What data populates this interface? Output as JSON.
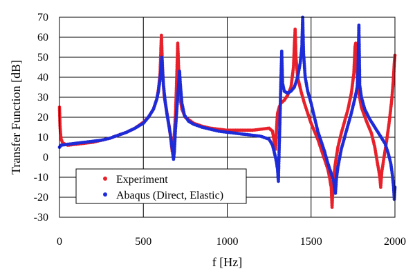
{
  "chart_data": {
    "type": "scatter",
    "title": "",
    "xlabel": "f [Hz]",
    "ylabel": "Transfer Function [dB]",
    "xlim": [
      0,
      2000
    ],
    "ylim": [
      -30,
      70
    ],
    "xticks": [
      0,
      500,
      1000,
      1500,
      2000
    ],
    "yticks": [
      -30,
      -20,
      -10,
      0,
      10,
      20,
      30,
      40,
      50,
      60,
      70
    ],
    "grid": true,
    "legend_position": "bottom-left",
    "series": [
      {
        "name": "Experiment",
        "color": "#e8202a",
        "marker": "circle",
        "points": [
          [
            0,
            25
          ],
          [
            3,
            16
          ],
          [
            6,
            12
          ],
          [
            10,
            9
          ],
          [
            20,
            7
          ],
          [
            50,
            6
          ],
          [
            100,
            6.5
          ],
          [
            150,
            7
          ],
          [
            200,
            7.5
          ],
          [
            250,
            8.5
          ],
          [
            300,
            9.5
          ],
          [
            350,
            11
          ],
          [
            400,
            12.5
          ],
          [
            450,
            14.5
          ],
          [
            500,
            17.5
          ],
          [
            530,
            20
          ],
          [
            560,
            24
          ],
          [
            580,
            29
          ],
          [
            590,
            34
          ],
          [
            600,
            42
          ],
          [
            605,
            55
          ],
          [
            608,
            61
          ],
          [
            612,
            50
          ],
          [
            618,
            38
          ],
          [
            625,
            30
          ],
          [
            635,
            25
          ],
          [
            645,
            20
          ],
          [
            655,
            15
          ],
          [
            665,
            8
          ],
          [
            672,
            3
          ],
          [
            678,
            5
          ],
          [
            685,
            12
          ],
          [
            692,
            22
          ],
          [
            700,
            42
          ],
          [
            705,
            57
          ],
          [
            710,
            45
          ],
          [
            718,
            30
          ],
          [
            730,
            24
          ],
          [
            750,
            20
          ],
          [
            800,
            17
          ],
          [
            850,
            15.5
          ],
          [
            900,
            14.5
          ],
          [
            950,
            14
          ],
          [
            1000,
            13.5
          ],
          [
            1050,
            13.5
          ],
          [
            1100,
            13.5
          ],
          [
            1150,
            13.5
          ],
          [
            1200,
            14
          ],
          [
            1250,
            14.5
          ],
          [
            1270,
            13
          ],
          [
            1280,
            8
          ],
          [
            1288,
            4
          ],
          [
            1292,
            10
          ],
          [
            1296,
            17
          ],
          [
            1300,
            22
          ],
          [
            1310,
            25
          ],
          [
            1320,
            27
          ],
          [
            1340,
            28.5
          ],
          [
            1360,
            31
          ],
          [
            1380,
            35
          ],
          [
            1395,
            45
          ],
          [
            1400,
            55
          ],
          [
            1405,
            64
          ],
          [
            1410,
            50
          ],
          [
            1420,
            40
          ],
          [
            1440,
            33
          ],
          [
            1460,
            27
          ],
          [
            1480,
            22
          ],
          [
            1500,
            17
          ],
          [
            1520,
            13
          ],
          [
            1540,
            9
          ],
          [
            1560,
            4
          ],
          [
            1580,
            -1
          ],
          [
            1600,
            -6
          ],
          [
            1610,
            -10
          ],
          [
            1620,
            -15
          ],
          [
            1625,
            -25
          ],
          [
            1632,
            -12
          ],
          [
            1645,
            -3
          ],
          [
            1660,
            5
          ],
          [
            1680,
            12
          ],
          [
            1700,
            18
          ],
          [
            1720,
            24
          ],
          [
            1740,
            32
          ],
          [
            1755,
            42
          ],
          [
            1762,
            55
          ],
          [
            1766,
            57
          ],
          [
            1772,
            45
          ],
          [
            1785,
            32
          ],
          [
            1800,
            25
          ],
          [
            1830,
            18
          ],
          [
            1860,
            12
          ],
          [
            1880,
            5
          ],
          [
            1890,
            0
          ],
          [
            1900,
            -5
          ],
          [
            1910,
            -10
          ],
          [
            1915,
            -15
          ],
          [
            1922,
            -7
          ],
          [
            1935,
            0
          ],
          [
            1950,
            8
          ],
          [
            1965,
            17
          ],
          [
            1980,
            28
          ],
          [
            1990,
            38
          ],
          [
            1996,
            47
          ],
          [
            2000,
            51
          ]
        ]
      },
      {
        "name": "Abaqus (Direct, Elastic)",
        "color": "#1d2bd8",
        "marker": "circle",
        "points": [
          [
            0,
            5
          ],
          [
            10,
            6
          ],
          [
            50,
            6.5
          ],
          [
            100,
            7
          ],
          [
            150,
            7.5
          ],
          [
            200,
            8
          ],
          [
            250,
            8.5
          ],
          [
            300,
            9.5
          ],
          [
            350,
            11
          ],
          [
            400,
            12.5
          ],
          [
            450,
            14.5
          ],
          [
            500,
            17
          ],
          [
            530,
            20
          ],
          [
            560,
            24
          ],
          [
            580,
            29
          ],
          [
            590,
            33
          ],
          [
            598,
            38
          ],
          [
            605,
            44
          ],
          [
            610,
            50
          ],
          [
            615,
            43
          ],
          [
            620,
            36
          ],
          [
            630,
            28
          ],
          [
            640,
            22
          ],
          [
            650,
            17
          ],
          [
            660,
            12
          ],
          [
            668,
            7
          ],
          [
            675,
            2
          ],
          [
            680,
            -1
          ],
          [
            685,
            3
          ],
          [
            690,
            12
          ],
          [
            698,
            22
          ],
          [
            705,
            30
          ],
          [
            712,
            38
          ],
          [
            716,
            43
          ],
          [
            720,
            37
          ],
          [
            730,
            27
          ],
          [
            745,
            21
          ],
          [
            770,
            18
          ],
          [
            800,
            16.5
          ],
          [
            850,
            15
          ],
          [
            900,
            14
          ],
          [
            950,
            13
          ],
          [
            1000,
            12.5
          ],
          [
            1050,
            12
          ],
          [
            1100,
            11.5
          ],
          [
            1150,
            11
          ],
          [
            1200,
            10.5
          ],
          [
            1250,
            9
          ],
          [
            1270,
            6
          ],
          [
            1285,
            1
          ],
          [
            1295,
            -3
          ],
          [
            1300,
            -6
          ],
          [
            1305,
            -12
          ],
          [
            1310,
            5
          ],
          [
            1315,
            20
          ],
          [
            1320,
            38
          ],
          [
            1325,
            53
          ],
          [
            1330,
            37
          ],
          [
            1340,
            33
          ],
          [
            1360,
            32
          ],
          [
            1380,
            33
          ],
          [
            1400,
            35
          ],
          [
            1420,
            40
          ],
          [
            1435,
            47
          ],
          [
            1445,
            55
          ],
          [
            1450,
            70
          ],
          [
            1455,
            52
          ],
          [
            1465,
            40
          ],
          [
            1480,
            33
          ],
          [
            1500,
            27
          ],
          [
            1520,
            20
          ],
          [
            1540,
            13
          ],
          [
            1560,
            8
          ],
          [
            1580,
            3
          ],
          [
            1600,
            -3
          ],
          [
            1620,
            -8
          ],
          [
            1635,
            -12
          ],
          [
            1645,
            -18
          ],
          [
            1652,
            -10
          ],
          [
            1660,
            -5
          ],
          [
            1680,
            4
          ],
          [
            1700,
            10
          ],
          [
            1720,
            16
          ],
          [
            1740,
            22
          ],
          [
            1760,
            29
          ],
          [
            1775,
            35
          ],
          [
            1780,
            43
          ],
          [
            1785,
            66
          ],
          [
            1790,
            36
          ],
          [
            1800,
            30
          ],
          [
            1820,
            24
          ],
          [
            1850,
            19
          ],
          [
            1880,
            15
          ],
          [
            1910,
            11
          ],
          [
            1940,
            7
          ],
          [
            1960,
            2
          ],
          [
            1975,
            -3
          ],
          [
            1985,
            -9
          ],
          [
            1992,
            -15
          ],
          [
            1996,
            -21
          ],
          [
            2000,
            -15
          ]
        ]
      }
    ]
  }
}
